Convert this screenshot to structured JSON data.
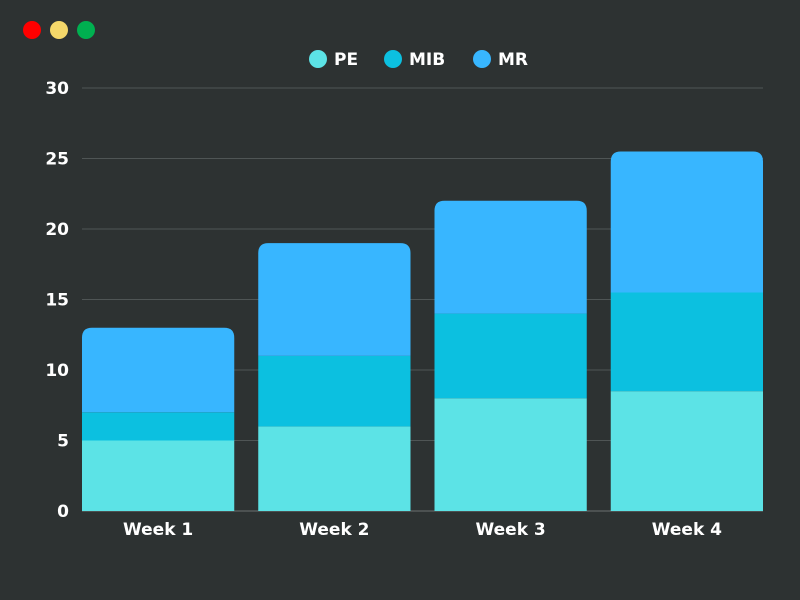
{
  "window": {
    "controls": [
      {
        "name": "close",
        "color": "#ff0000"
      },
      {
        "name": "minimize",
        "color": "#f5d86a"
      },
      {
        "name": "maximize",
        "color": "#00b050"
      }
    ]
  },
  "chart_data": {
    "type": "bar",
    "stacked": true,
    "title": "",
    "xlabel": "",
    "ylabel": "",
    "categories": [
      "Week 1",
      "Week 2",
      "Week 3",
      "Week 4"
    ],
    "series": [
      {
        "name": "PE",
        "color": "#5ce3e6",
        "values": [
          5,
          6,
          8,
          8.5
        ]
      },
      {
        "name": "MIB",
        "color": "#0cc0e0",
        "values": [
          2,
          5,
          6,
          7
        ]
      },
      {
        "name": "MR",
        "color": "#38b6ff",
        "values": [
          6,
          8,
          8,
          10
        ]
      }
    ],
    "ylim": [
      0,
      30
    ],
    "yticks": [
      "0",
      "5",
      "10",
      "15",
      "20",
      "25",
      "30"
    ],
    "grid": true,
    "legend_position": "top-center"
  }
}
